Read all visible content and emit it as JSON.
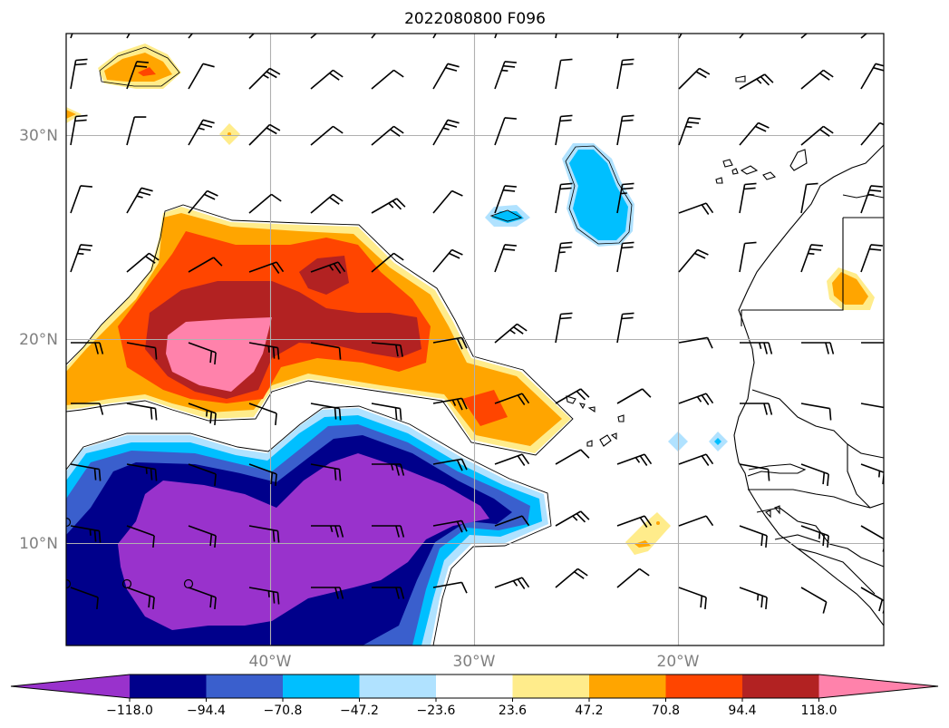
{
  "title": "2022080800 F096",
  "map": {
    "lat_ticks": [
      "30°N",
      "20°N",
      "10°N"
    ],
    "lon_ticks": [
      "40°W",
      "30°W",
      "20°W"
    ],
    "lon_range": [
      -50,
      -10
    ],
    "lat_range": [
      5,
      35
    ],
    "grid": true,
    "field": "filled contours with wind barbs"
  },
  "colorbar": {
    "orientation": "horizontal",
    "extend": "both",
    "levels": [
      -141.6,
      -118.0,
      -94.4,
      -70.8,
      -47.2,
      -23.6,
      23.6,
      47.2,
      70.8,
      94.4,
      118.0,
      141.6
    ],
    "tick_labels": [
      "−118.0",
      "−94.4",
      "−70.8",
      "−47.2",
      "−23.6",
      "23.6",
      "47.2",
      "70.8",
      "94.4",
      "118.0"
    ],
    "colors": [
      "#9932CC",
      "#00008B",
      "#3A5FCD",
      "#00BFFF",
      "#B0E2FF",
      "#FFFFFF",
      "#FFEC8B",
      "#FFA500",
      "#FF4500",
      "#B22222",
      "#FF82AB"
    ]
  }
}
